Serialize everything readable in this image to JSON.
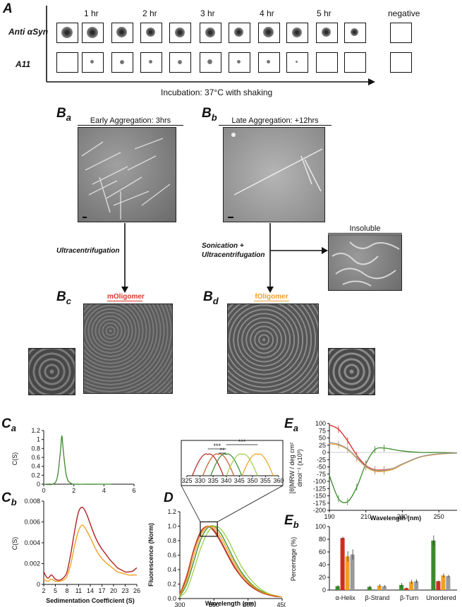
{
  "panelA": {
    "label": "A",
    "row_labels": [
      "Anti αSyn",
      "A11"
    ],
    "time_labels": [
      "1 hr",
      "2 hr",
      "3 hr",
      "4 hr",
      "5 hr"
    ],
    "negative_label": "negative",
    "incubation": "Incubation: 37°C with shaking"
  },
  "panelB": {
    "a": {
      "label": "B",
      "sub": "a",
      "title": "Early Aggregation: 3hrs"
    },
    "b": {
      "label": "B",
      "sub": "b",
      "title": "Late Aggregation: +12hrs"
    },
    "c": {
      "label": "B",
      "sub": "c",
      "title": "mOligomer",
      "title_color": "#e0372b"
    },
    "d": {
      "label": "B",
      "sub": "d",
      "title": "fOligomer",
      "title_color": "#f0a030"
    },
    "arrow_left": "Ultracentrifugation",
    "arrow_right_line1": "Sonication +",
    "arrow_right_line2": "Ultracentrifugation",
    "insoluble": "Insoluble"
  },
  "colors": {
    "green": "#3a8a2a",
    "red": "#d42a1e",
    "orange": "#f0a020",
    "gray": "#999999",
    "darkred": "#b32020"
  },
  "panelC": {
    "a_label": "C",
    "a_sub": "a",
    "b_label": "C",
    "b_sub": "b",
    "ylabel": "C(S)",
    "xlabel": "Sedimentation Coefficient (S)"
  },
  "panelD": {
    "label": "D",
    "ylabel": "Fluorescence (Norm)",
    "xlabel": "Wavelength (nm)",
    "sig1": "***",
    "sig2": "**",
    "sig3": "***"
  },
  "panelE": {
    "a_label": "E",
    "a_sub": "a",
    "b_label": "E",
    "b_sub": "b",
    "a_ylabel_line1": "[θ]MRW / deg cm²",
    "a_ylabel_line2": "dmol⁻¹ (x10³)",
    "a_xlabel": "Wavelength (nm)",
    "b_ylabel": "Percentage (%)"
  },
  "chart_data": [
    {
      "type": "line",
      "id": "Ca",
      "x": [
        0,
        0.6,
        0.9,
        1.1,
        1.2,
        1.3,
        1.5,
        1.8,
        2.5,
        4.5
      ],
      "series": [
        {
          "values": [
            0,
            0.0,
            0.15,
            0.7,
            1.08,
            0.75,
            0.2,
            0.02,
            0,
            0
          ]
        }
      ],
      "xlim": [
        0,
        6
      ],
      "ylim": [
        0,
        1.2
      ],
      "xticks": [
        0,
        2,
        4,
        6
      ],
      "yticks": [
        0,
        0.2,
        0.4,
        0.6,
        0.8,
        1,
        1.2
      ],
      "ylabel": "C(S)"
    },
    {
      "type": "line",
      "id": "Cb",
      "x": [
        2,
        3,
        4,
        5,
        6,
        7,
        8,
        9,
        10,
        11,
        12,
        13,
        14,
        15,
        16,
        17,
        18,
        19,
        20,
        21,
        22,
        23,
        24,
        25,
        26
      ],
      "series": [
        {
          "values": [
            0.0012,
            0.0006,
            0.0009,
            0.0005,
            0.0004,
            0.0006,
            0.0012,
            0.003,
            0.0052,
            0.007,
            0.0074,
            0.0068,
            0.0058,
            0.0048,
            0.004,
            0.0034,
            0.0029,
            0.0024,
            0.002,
            0.0016,
            0.0014,
            0.0012,
            0.0012,
            0.0013,
            0.0016
          ]
        },
        {
          "values": [
            0.0005,
            0.0003,
            0.0005,
            0.0003,
            0.0003,
            0.0004,
            0.0008,
            0.002,
            0.0038,
            0.0052,
            0.0057,
            0.0052,
            0.0045,
            0.0037,
            0.003,
            0.0025,
            0.0021,
            0.0018,
            0.0015,
            0.0012,
            0.0011,
            0.001,
            0.0009,
            0.0009,
            0.0009
          ]
        }
      ],
      "xlim": [
        2,
        26
      ],
      "ylim": [
        0,
        0.008
      ],
      "xticks": [
        2,
        5,
        8,
        11,
        14,
        17,
        20,
        23,
        26
      ],
      "yticks": [
        0,
        0.002,
        0.004,
        0.006,
        0.008
      ],
      "xlabel": "Sedimentation Coefficient (S)",
      "ylabel": "C(S)"
    },
    {
      "type": "line",
      "id": "D",
      "x": [
        300,
        310,
        320,
        330,
        340,
        350,
        360,
        370,
        380,
        390,
        400,
        410,
        420,
        430,
        440,
        450
      ],
      "series": [
        {
          "values": [
            0.05,
            0.3,
            0.65,
            0.9,
            1.0,
            0.93,
            0.78,
            0.6,
            0.43,
            0.3,
            0.2,
            0.13,
            0.08,
            0.05,
            0.03,
            0.02
          ]
        },
        {
          "values": [
            0.06,
            0.32,
            0.67,
            0.92,
            1.0,
            0.95,
            0.8,
            0.62,
            0.45,
            0.31,
            0.21,
            0.14,
            0.09,
            0.06,
            0.04,
            0.02
          ]
        },
        {
          "values": [
            0.03,
            0.2,
            0.5,
            0.8,
            0.97,
            1.0,
            0.9,
            0.72,
            0.53,
            0.37,
            0.25,
            0.16,
            0.1,
            0.06,
            0.04,
            0.02
          ]
        },
        {
          "values": [
            0.02,
            0.12,
            0.38,
            0.68,
            0.9,
            1.0,
            0.96,
            0.82,
            0.63,
            0.45,
            0.31,
            0.2,
            0.12,
            0.07,
            0.04,
            0.02
          ]
        },
        {
          "values": [
            0.04,
            0.25,
            0.58,
            0.86,
            0.99,
            0.98,
            0.85,
            0.67,
            0.49,
            0.34,
            0.23,
            0.15,
            0.09,
            0.06,
            0.04,
            0.02
          ]
        }
      ],
      "xlim": [
        300,
        450
      ],
      "ylim": [
        0,
        1.2
      ],
      "xticks": [
        300,
        350,
        400,
        450
      ],
      "yticks": [
        0,
        0.2,
        0.4,
        0.6,
        0.8,
        1.0,
        1.2
      ],
      "inset_xticks": [
        325,
        330,
        335,
        340,
        345,
        350,
        355,
        360
      ],
      "inset_peaks": [
        333,
        337,
        340,
        346,
        352
      ],
      "xlabel": "Wavelength (nm)",
      "ylabel": "Fluorescence (Norm)"
    },
    {
      "type": "line",
      "id": "Ea",
      "x": [
        190,
        195,
        200,
        205,
        210,
        215,
        220,
        225,
        230,
        240,
        250,
        260
      ],
      "series": [
        {
          "values": [
            -80,
            -160,
            -170,
            -120,
            -40,
            10,
            15,
            10,
            5,
            0,
            0,
            -2
          ]
        },
        {
          "values": [
            95,
            80,
            40,
            -10,
            -45,
            -60,
            -60,
            -55,
            -40,
            -15,
            -5,
            -2
          ]
        },
        {
          "values": [
            30,
            25,
            10,
            -20,
            -50,
            -65,
            -65,
            -58,
            -42,
            -16,
            -6,
            -2
          ]
        },
        {
          "values": [
            35,
            28,
            12,
            -18,
            -48,
            -62,
            -62,
            -55,
            -40,
            -15,
            -5,
            -2
          ]
        }
      ],
      "xlim": [
        190,
        260
      ],
      "ylim": [
        -200,
        100
      ],
      "xticks": [
        190,
        210,
        230,
        250
      ],
      "yticks": [
        -200,
        -175,
        -150,
        -125,
        -100,
        -75,
        -50,
        -25,
        0,
        25,
        50,
        75,
        100
      ],
      "xlabel": "Wavelength (nm)"
    },
    {
      "type": "bar",
      "id": "Eb",
      "categories": [
        "α-Helix",
        "β-Strand",
        "β-Turn",
        "Unordered"
      ],
      "series": [
        {
          "values": [
            6,
            5,
            8,
            78
          ]
        },
        {
          "values": [
            82,
            0,
            3,
            14
          ]
        },
        {
          "values": [
            53,
            7,
            13,
            23
          ]
        },
        {
          "values": [
            56,
            6,
            14,
            22
          ]
        }
      ],
      "errors": [
        [
          2,
          2,
          3,
          8
        ],
        [
          2,
          0,
          1,
          1
        ],
        [
          8,
          2,
          3,
          3
        ],
        [
          8,
          2,
          3,
          2
        ]
      ],
      "ylim": [
        0,
        100
      ],
      "yticks": [
        0,
        20,
        40,
        60,
        80,
        100
      ],
      "ylabel": "Percentage (%)"
    }
  ]
}
